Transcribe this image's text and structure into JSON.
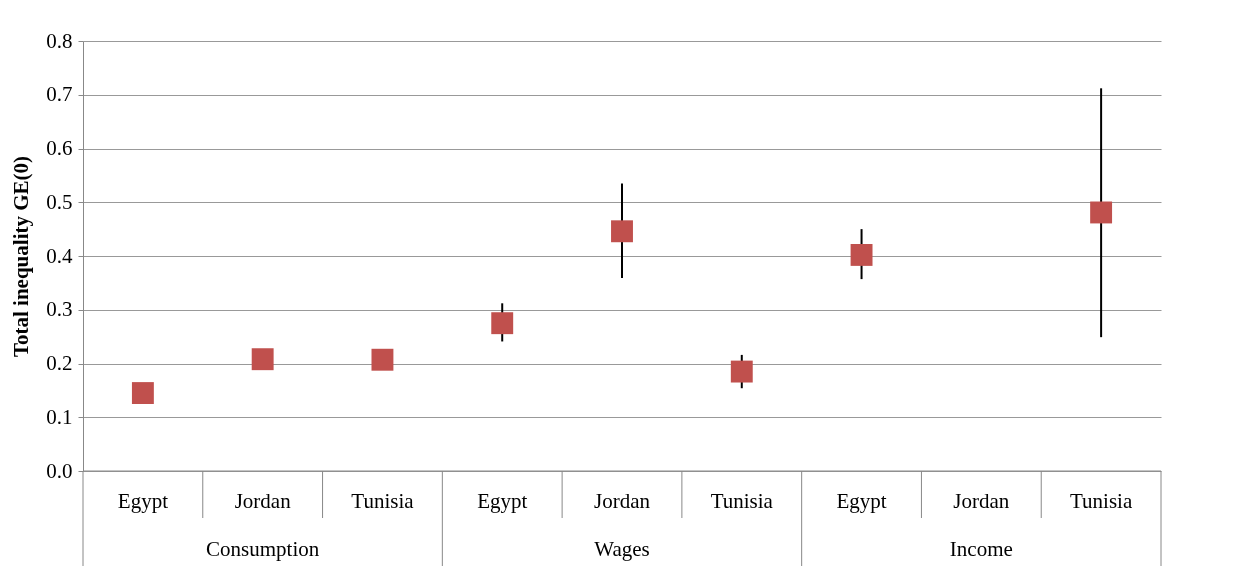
{
  "chart_data": {
    "type": "scatter",
    "ylabel": "Total inequality GE(0)",
    "categories": [
      "Egypt",
      "Jordan",
      "Tunisia",
      "Egypt",
      "Jordan",
      "Tunisia",
      "Egypt",
      "Jordan",
      "Tunisia"
    ],
    "annotations": [
      "Consumption",
      "Wages",
      "Income"
    ],
    "series": [
      {
        "color": "#c0504d",
        "values": [
          0.145,
          0.208,
          0.207,
          0.275,
          0.446,
          0.185,
          0.402,
          null,
          0.481
        ],
        "errors": [
          null,
          null,
          null,
          [
            0.241,
            0.312
          ],
          [
            0.359,
            0.535
          ],
          [
            0.154,
            0.216
          ],
          [
            0.357,
            0.45
          ],
          null,
          [
            0.249,
            0.712
          ]
        ]
      }
    ],
    "ylim": [
      0,
      0.8
    ],
    "yticks": [
      {
        "value": 0,
        "label": "0.0"
      },
      0.1,
      0.2,
      0.3,
      0.4,
      0.5,
      0.6,
      0.7,
      0.8
    ],
    "grid": "y",
    "marker": "square"
  }
}
